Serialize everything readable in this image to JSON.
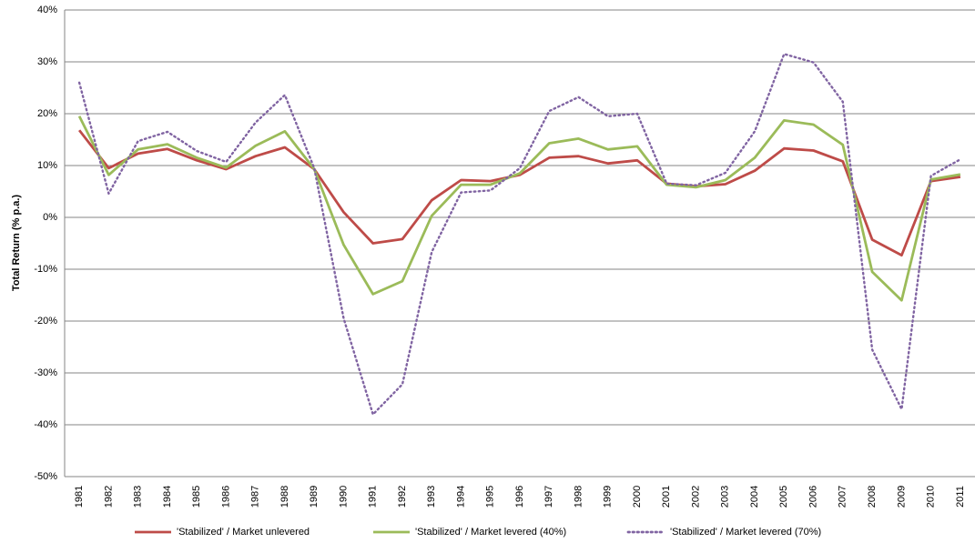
{
  "chart_data": {
    "type": "line",
    "y_label": "Total Return (% p.a.)",
    "categories": [
      "1981",
      "1982",
      "1983",
      "1984",
      "1985",
      "1986",
      "1987",
      "1988",
      "1989",
      "1990",
      "1991",
      "1992",
      "1993",
      "1994",
      "1995",
      "1996",
      "1997",
      "1998",
      "1999",
      "2000",
      "2001",
      "2002",
      "2003",
      "2004",
      "2005",
      "2006",
      "2007",
      "2008",
      "2009",
      "2010",
      "2011"
    ],
    "series": [
      {
        "name": "'Stabilized' / Market unlevered",
        "color": "#be4b48",
        "style": "solid",
        "values": [
          16.8,
          9.5,
          12.3,
          13.2,
          11,
          9.3,
          11.8,
          13.5,
          9.3,
          1,
          -5,
          -4.2,
          3.3,
          7.2,
          7,
          8.2,
          11.5,
          11.8,
          10.4,
          11,
          6.5,
          6,
          6.4,
          9,
          13.3,
          12.9,
          10.8,
          -4.3,
          -7.3,
          7,
          7.8
        ]
      },
      {
        "name": "'Stabilized' / Market levered (40%)",
        "color": "#9bbb59",
        "style": "solid",
        "values": [
          19.5,
          8.2,
          13.1,
          14.1,
          11.5,
          9.6,
          13.8,
          16.6,
          9.3,
          -5.3,
          -14.8,
          -12.3,
          0.3,
          6.3,
          6.3,
          8.5,
          14.3,
          15.2,
          13.1,
          13.7,
          6.3,
          5.8,
          7.2,
          11.5,
          18.7,
          17.9,
          14,
          -10.5,
          -16,
          7.3,
          8.3
        ]
      },
      {
        "name": "'Stabilized' / Market levered (70%)",
        "color": "#8064a2",
        "style": "dotted",
        "values": [
          26,
          4.6,
          14.7,
          16.5,
          12.8,
          10.7,
          18.3,
          23.6,
          9.5,
          -19.5,
          -38,
          -32.2,
          -6.7,
          4.8,
          5.2,
          9.5,
          20.5,
          23.2,
          19.5,
          20,
          6.5,
          6.2,
          8.6,
          16.6,
          31.5,
          29.9,
          22.3,
          -25.5,
          -37,
          8,
          11.2
        ]
      }
    ],
    "ylim": [
      -50,
      40
    ],
    "yticks": [
      {
        "value": -50,
        "label": "-50%"
      },
      {
        "value": -40,
        "label": "-40%"
      },
      {
        "value": -30,
        "label": "-30%"
      },
      {
        "value": -20,
        "label": "-20%"
      },
      {
        "value": -10,
        "label": "-10%"
      },
      {
        "value": 0,
        "label": "0%"
      },
      {
        "value": 10,
        "label": "10%"
      },
      {
        "value": 20,
        "label": "20%"
      },
      {
        "value": 30,
        "label": "30%"
      },
      {
        "value": 40,
        "label": "40%"
      }
    ],
    "grid": true,
    "legend": "bottom"
  }
}
